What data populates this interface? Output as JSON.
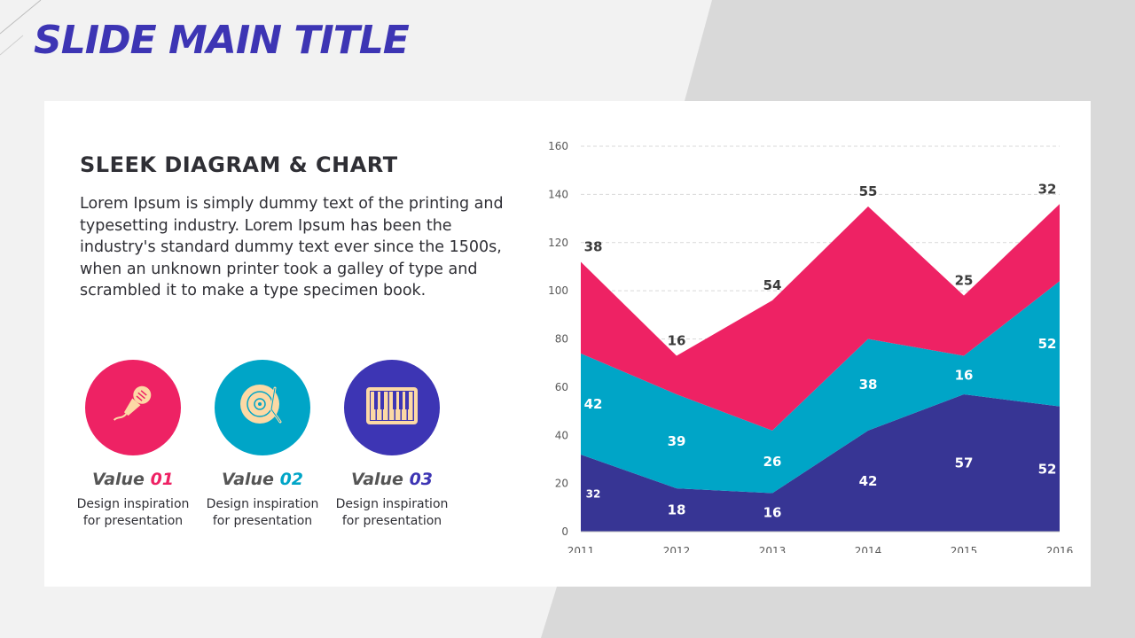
{
  "slide": {
    "title": "SLIDE MAIN TITLE"
  },
  "content": {
    "heading": "SLEEK DIAGRAM & CHART",
    "description": "Lorem Ipsum is simply dummy text of the printing and typesetting industry. Lorem Ipsum has been the industry's standard dummy text ever since the 1500s, when an unknown printer took a galley of type and scrambled it to make a type specimen book."
  },
  "values": [
    {
      "label": "Value",
      "number": "01",
      "subtitle": "Design inspiration\nfor presentation",
      "icon": "microphone-icon",
      "color": "#ee2264"
    },
    {
      "label": "Value",
      "number": "02",
      "subtitle": "Design inspiration\nfor presentation",
      "icon": "vinyl-record-icon",
      "color": "#00a5c7"
    },
    {
      "label": "Value",
      "number": "03",
      "subtitle": "Design inspiration\nfor presentation",
      "icon": "piano-keyboard-icon",
      "color": "#3d35b4"
    }
  ],
  "colors": {
    "accent": "#3d35b4",
    "pink": "#ee2264",
    "teal": "#00a5c7",
    "navy": "#373594",
    "icon_fill": "#fcd9a5"
  },
  "chart_data": {
    "type": "area",
    "stacked": true,
    "x": [
      "2011",
      "2012",
      "2013",
      "2014",
      "2015",
      "2016"
    ],
    "ylim": [
      0,
      160
    ],
    "yticks": [
      0,
      20,
      40,
      60,
      80,
      100,
      120,
      140,
      160
    ],
    "grid": true,
    "series": [
      {
        "values": [
          32,
          18,
          16,
          42,
          57,
          52
        ],
        "color": "#373594"
      },
      {
        "values": [
          42,
          39,
          26,
          38,
          16,
          52
        ],
        "color": "#00a5c7"
      },
      {
        "values": [
          38,
          16,
          54,
          55,
          25,
          32
        ],
        "color": "#ee2264"
      }
    ]
  }
}
